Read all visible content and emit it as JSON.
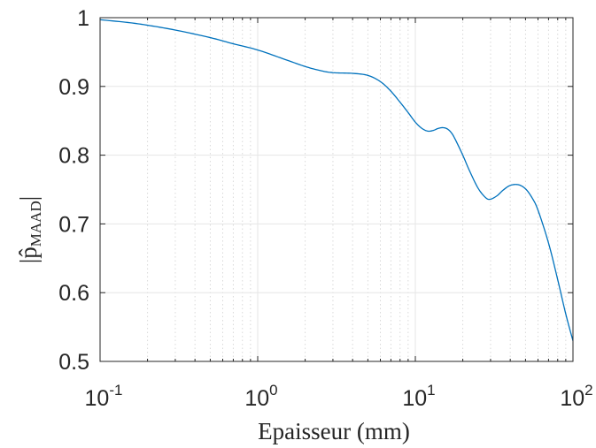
{
  "chart_data": {
    "type": "line",
    "title": "",
    "xlabel": "Epaisseur (mm)",
    "ylabel": "|p̂",
    "ylabel_subscript": "MAAD",
    "ylabel_close": "|",
    "xscale": "log",
    "xlim": [
      0.1,
      100
    ],
    "ylim": [
      0.5,
      1.0
    ],
    "grid": true,
    "minor_grid_x": true,
    "x_ticks": [
      {
        "base": "10",
        "exp": "-1"
      },
      {
        "base": "10",
        "exp": "0"
      },
      {
        "base": "10",
        "exp": "1"
      },
      {
        "base": "10",
        "exp": "2"
      }
    ],
    "y_ticks": [
      "0.5",
      "0.6",
      "0.7",
      "0.8",
      "0.9",
      "1"
    ],
    "series": [
      {
        "color": "#0072BD",
        "x": [
          0.1,
          0.15,
          0.2,
          0.3,
          0.5,
          0.7,
          1.0,
          1.5,
          2.0,
          2.5,
          3.0,
          4.0,
          5.0,
          6.0,
          7.0,
          8.0,
          9.0,
          10.0,
          11.0,
          12.0,
          13.0,
          14.0,
          15.0,
          16.0,
          17.0,
          18.0,
          20.0,
          22.0,
          25.0,
          28.0,
          30.0,
          33.0,
          36.0,
          40.0,
          45.0,
          50.0,
          55.0,
          60.0,
          70.0,
          80.0,
          90.0,
          100.0
        ],
        "y": [
          0.997,
          0.993,
          0.989,
          0.982,
          0.971,
          0.962,
          0.953,
          0.939,
          0.929,
          0.923,
          0.92,
          0.919,
          0.916,
          0.907,
          0.893,
          0.877,
          0.862,
          0.848,
          0.839,
          0.835,
          0.836,
          0.839,
          0.84,
          0.838,
          0.832,
          0.822,
          0.8,
          0.778,
          0.752,
          0.738,
          0.736,
          0.741,
          0.749,
          0.756,
          0.757,
          0.751,
          0.738,
          0.72,
          0.672,
          0.619,
          0.569,
          0.53
        ]
      }
    ]
  }
}
